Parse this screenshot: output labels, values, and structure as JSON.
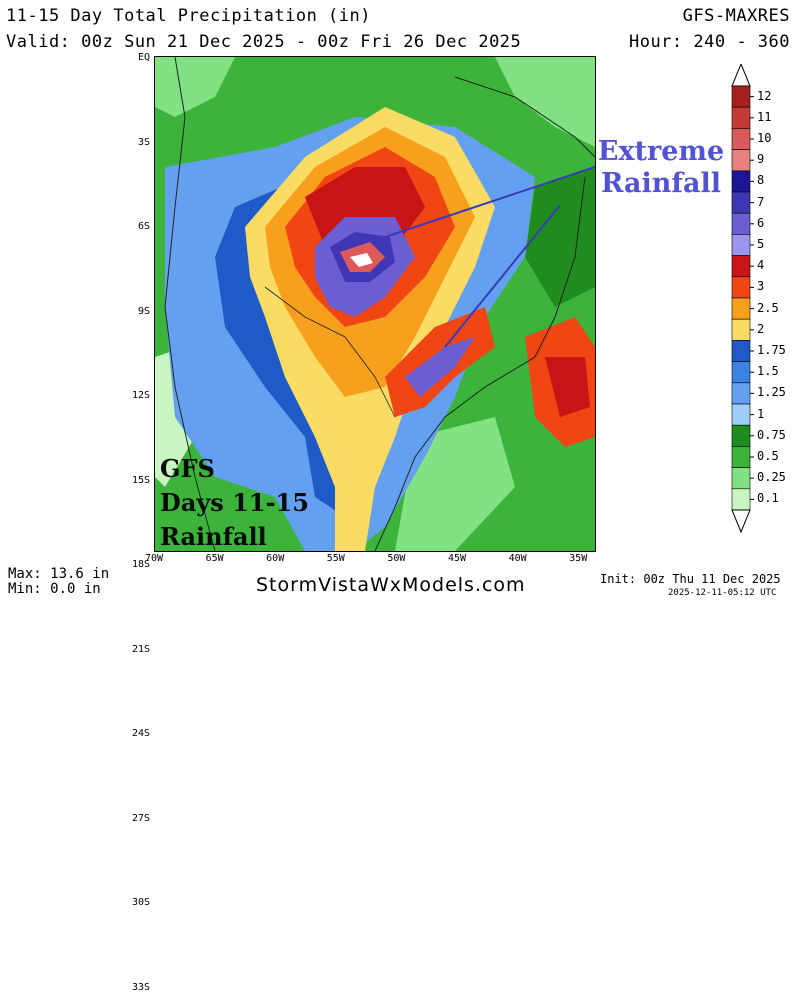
{
  "header": {
    "title": "11-15 Day Total Precipitation (in)",
    "valid": "Valid: 00z Sun 21 Dec 2025 - 00z Fri 26 Dec 2025",
    "model": "GFS-MAXRES",
    "hour": "Hour: 240 - 360"
  },
  "map": {
    "lat_labels": [
      "EQ",
      "3S",
      "6S",
      "9S",
      "12S",
      "15S",
      "18S",
      "21S",
      "24S",
      "27S",
      "30S",
      "33S"
    ],
    "lon_labels": [
      "70W",
      "65W",
      "60W",
      "55W",
      "50W",
      "45W",
      "40W",
      "35W"
    ]
  },
  "legend": {
    "levels": [
      {
        "label": "12",
        "color": "#a61e1e"
      },
      {
        "label": "11",
        "color": "#c43a36"
      },
      {
        "label": "10",
        "color": "#dc5a58"
      },
      {
        "label": "9",
        "color": "#e98080"
      },
      {
        "label": "8",
        "color": "#1e1496"
      },
      {
        "label": "7",
        "color": "#3e36b4"
      },
      {
        "label": "6",
        "color": "#6a5ed2"
      },
      {
        "label": "5",
        "color": "#9a96ee"
      },
      {
        "label": "4",
        "color": "#c81414"
      },
      {
        "label": "3",
        "color": "#f04614"
      },
      {
        "label": "2.5",
        "color": "#f8a01e"
      },
      {
        "label": "2",
        "color": "#fadc64"
      },
      {
        "label": "1.75",
        "color": "#1e5ac8"
      },
      {
        "label": "1.5",
        "color": "#3c82e1"
      },
      {
        "label": "1.25",
        "color": "#64a0f0"
      },
      {
        "label": "1",
        "color": "#a0cdf8"
      },
      {
        "label": "0.75",
        "color": "#1e8c1e"
      },
      {
        "label": "0.5",
        "color": "#3cb43c"
      },
      {
        "label": "0.25",
        "color": "#82e182"
      },
      {
        "label": "0.1",
        "color": "#c8f5c0"
      }
    ]
  },
  "annotations": {
    "extreme": {
      "line1": "Extreme",
      "line2": "Rainfall"
    },
    "gfs": {
      "line1": "GFS",
      "line2": "Days 11-15",
      "line3": "Rainfall"
    }
  },
  "footer": {
    "max": "Max: 13.6 in",
    "min": "Min: 0.0 in",
    "website": "StormVistaWxModels.com",
    "init": "Init: 00z Thu 11 Dec 2025",
    "stamp": "2025-12-11-05:12 UTC"
  }
}
